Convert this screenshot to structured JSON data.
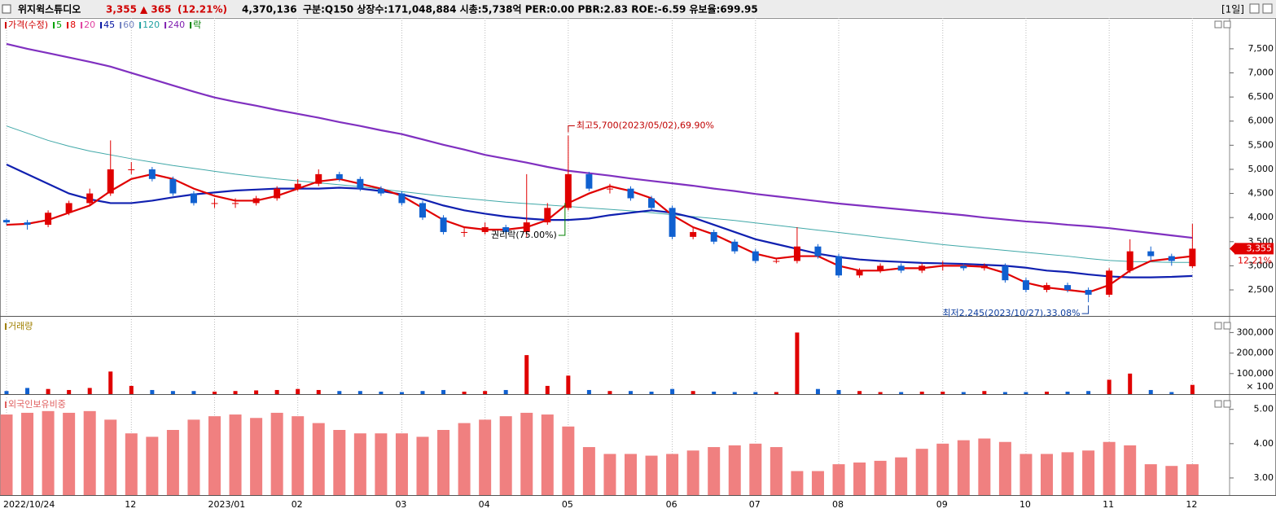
{
  "header": {
    "name": "위지윅스튜디오",
    "price": "3,355",
    "change": "▲ 365",
    "change_pct": "(12.21%)",
    "volume": "4,370,136",
    "info": "구분:Q150 상장수:171,048,884 시총:5,738억 PER:0.00 PBR:2.83 ROE:-6.59 유보율:699.95",
    "period": "[1일]"
  },
  "chart_data": [
    {
      "type": "candlestick",
      "up_color": "#e00000",
      "down_color": "#1060d0",
      "legend": [
        {
          "name": "가격(수정)",
          "color": "#d00000"
        },
        {
          "name": "5",
          "color": "#00a000"
        },
        {
          "name": "8",
          "color": "#e00000"
        },
        {
          "name": "20",
          "color": "#e040a0"
        },
        {
          "name": "45",
          "color": "#0010a0"
        },
        {
          "name": "60",
          "color": "#7080c0"
        },
        {
          "name": "120",
          "color": "#20a0a0"
        },
        {
          "name": "240",
          "color": "#8020b0"
        },
        {
          "name": "락",
          "color": "#008000"
        }
      ],
      "categories": [
        "2022/10/24",
        null,
        null,
        null,
        null,
        null,
        "12",
        null,
        null,
        null,
        "2023/01",
        null,
        null,
        null,
        "02",
        null,
        null,
        null,
        null,
        "03",
        null,
        null,
        null,
        "04",
        null,
        null,
        null,
        "05",
        null,
        null,
        null,
        null,
        "06",
        null,
        null,
        null,
        "07",
        null,
        null,
        null,
        "08",
        null,
        null,
        null,
        null,
        "09",
        null,
        null,
        null,
        "10",
        null,
        null,
        null,
        "11",
        null,
        null,
        null,
        "12"
      ],
      "open": [
        3950,
        3900,
        3850,
        4100,
        4300,
        4500,
        5000,
        5000,
        4800,
        4500,
        4300,
        4300,
        4300,
        4400,
        4600,
        4700,
        4900,
        4800,
        4600,
        4500,
        4300,
        4000,
        3700,
        3700,
        3800,
        3700,
        3900,
        4200,
        4900,
        4600,
        4600,
        4400,
        4200,
        3600,
        3700,
        3500,
        3300,
        3100,
        3100,
        3400,
        3200,
        2800,
        2900,
        3000,
        2900,
        3000,
        3000,
        2950,
        3000,
        2700,
        2500,
        2600,
        2500,
        2400,
        2900,
        3300,
        3200,
        2990
      ],
      "high": [
        3980,
        3950,
        4150,
        4350,
        4600,
        5600,
        5150,
        5050,
        4850,
        4550,
        4400,
        4400,
        4450,
        4650,
        4800,
        5000,
        4950,
        4850,
        4650,
        4550,
        4350,
        4050,
        3800,
        3900,
        3850,
        4900,
        4300,
        5700,
        4950,
        4700,
        4650,
        4450,
        4250,
        3800,
        3750,
        3550,
        3350,
        3150,
        3800,
        3450,
        3250,
        2950,
        3050,
        3050,
        3050,
        3100,
        3050,
        3050,
        3050,
        2750,
        2650,
        2650,
        2550,
        2950,
        3550,
        3400,
        3250,
        3870
      ],
      "low": [
        3850,
        3750,
        3800,
        4050,
        4250,
        4450,
        4900,
        4750,
        4450,
        4250,
        4200,
        4200,
        4250,
        4350,
        4550,
        4650,
        4750,
        4550,
        4450,
        4250,
        3950,
        3650,
        3600,
        3650,
        3650,
        3600,
        3850,
        4150,
        4550,
        4500,
        4350,
        4150,
        3550,
        3550,
        3450,
        3250,
        3050,
        3050,
        3050,
        3150,
        2750,
        2750,
        2850,
        2850,
        2850,
        2900,
        2900,
        2900,
        2650,
        2450,
        2450,
        2450,
        2245,
        2350,
        2850,
        3100,
        3000,
        2950
      ],
      "close": [
        3900,
        3850,
        4100,
        4300,
        4500,
        5000,
        5000,
        4800,
        4500,
        4300,
        4300,
        4300,
        4400,
        4600,
        4700,
        4900,
        4800,
        4600,
        4500,
        4300,
        4000,
        3700,
        3700,
        3800,
        3700,
        3900,
        4200,
        4900,
        4600,
        4600,
        4400,
        4200,
        3600,
        3700,
        3500,
        3300,
        3100,
        3100,
        3400,
        3200,
        2800,
        2900,
        3000,
        2900,
        3000,
        3000,
        2950,
        3000,
        2700,
        2500,
        2600,
        2500,
        2400,
        2900,
        3300,
        3200,
        3100,
        3355
      ],
      "ma_lines": [
        {
          "color": "#40a8a8",
          "values": [
            5900,
            5750,
            5600,
            5480,
            5380,
            5300,
            5220,
            5150,
            5080,
            5020,
            4960,
            4900,
            4850,
            4800,
            4760,
            4720,
            4680,
            4640,
            4590,
            4540,
            4490,
            4440,
            4400,
            4360,
            4320,
            4290,
            4260,
            4230,
            4200,
            4170,
            4140,
            4100,
            4060,
            4020,
            3980,
            3940,
            3890,
            3840,
            3790,
            3740,
            3690,
            3640,
            3590,
            3540,
            3490,
            3440,
            3400,
            3360,
            3320,
            3280,
            3240,
            3200,
            3150,
            3110,
            3090,
            3080,
            3070,
            3070
          ]
        },
        {
          "color": "#8030c0",
          "values": [
            7600,
            7500,
            7410,
            7320,
            7230,
            7130,
            7000,
            6870,
            6740,
            6610,
            6490,
            6400,
            6320,
            6230,
            6150,
            6070,
            5980,
            5900,
            5810,
            5730,
            5620,
            5510,
            5410,
            5300,
            5220,
            5140,
            5050,
            4970,
            4920,
            4870,
            4810,
            4760,
            4710,
            4660,
            4600,
            4550,
            4490,
            4440,
            4390,
            4340,
            4290,
            4250,
            4210,
            4170,
            4130,
            4090,
            4050,
            4000,
            3960,
            3920,
            3890,
            3850,
            3820,
            3780,
            3730,
            3680,
            3630,
            3580
          ]
        },
        {
          "color": "#1020b0",
          "values": [
            5100,
            4900,
            4700,
            4500,
            4380,
            4300,
            4300,
            4350,
            4420,
            4480,
            4520,
            4560,
            4580,
            4600,
            4600,
            4600,
            4620,
            4600,
            4550,
            4480,
            4380,
            4250,
            4150,
            4080,
            4020,
            3980,
            3950,
            3950,
            3980,
            4050,
            4100,
            4150,
            4100,
            4000,
            3850,
            3700,
            3550,
            3450,
            3350,
            3250,
            3180,
            3130,
            3100,
            3080,
            3060,
            3050,
            3040,
            3020,
            3000,
            2960,
            2900,
            2870,
            2820,
            2780,
            2760,
            2760,
            2770,
            2790
          ]
        },
        {
          "color": "#e00000",
          "values": [
            3850,
            3870,
            3950,
            4100,
            4250,
            4550,
            4800,
            4900,
            4800,
            4600,
            4450,
            4350,
            4350,
            4450,
            4600,
            4750,
            4800,
            4700,
            4600,
            4450,
            4200,
            3950,
            3800,
            3750,
            3750,
            3800,
            3950,
            4300,
            4500,
            4650,
            4550,
            4400,
            4050,
            3800,
            3650,
            3450,
            3250,
            3150,
            3200,
            3200,
            3000,
            2900,
            2900,
            2950,
            2950,
            3000,
            3000,
            2980,
            2850,
            2650,
            2550,
            2500,
            2450,
            2600,
            2900,
            3100,
            3150,
            3200
          ]
        }
      ],
      "annotations": {
        "high": "최고5,700(2023/05/02),69.90%",
        "low": "최저2,245(2023/10/27),33.08%",
        "rights": "권리락(75.00%)"
      },
      "price_tag": {
        "price": "3,355",
        "change": "12.21%"
      },
      "ylim": [
        1960,
        8140
      ],
      "yticks": [
        {
          "value": 2500,
          "label": "2,500"
        },
        {
          "value": 3000,
          "label": "3,000"
        },
        {
          "value": 3500,
          "label": "3,500"
        },
        {
          "value": 4000,
          "label": "4,000"
        },
        {
          "value": 4500,
          "label": "4,500"
        },
        {
          "value": 5000,
          "label": "5,000"
        },
        {
          "value": 5500,
          "label": "5,500"
        },
        {
          "value": 6000,
          "label": "6,000"
        },
        {
          "value": 6500,
          "label": "6,500"
        },
        {
          "value": 7000,
          "label": "7,000"
        },
        {
          "value": 7500,
          "label": "7,500"
        }
      ]
    },
    {
      "type": "bar",
      "title": "거래량",
      "title_color": "#a08000",
      "up_color": "#e00000",
      "down_color": "#1060d0",
      "unit_label": "× 100",
      "values": [
        15000,
        30000,
        25000,
        20000,
        30000,
        110000,
        40000,
        20000,
        15000,
        15000,
        12000,
        15000,
        18000,
        20000,
        25000,
        20000,
        15000,
        15000,
        12000,
        10000,
        15000,
        20000,
        12000,
        15000,
        20000,
        190000,
        40000,
        90000,
        20000,
        15000,
        15000,
        12000,
        25000,
        15000,
        12000,
        10000,
        10000,
        10000,
        300000,
        25000,
        20000,
        15000,
        10000,
        10000,
        12000,
        12000,
        10000,
        15000,
        10000,
        10000,
        12000,
        12000,
        15000,
        70000,
        100000,
        20000,
        10000,
        45000
      ],
      "ylim": [
        0,
        365000
      ],
      "yticks": [
        {
          "value": 100000,
          "label": "100,000"
        },
        {
          "value": 200000,
          "label": "200,000"
        },
        {
          "value": 300000,
          "label": "300,000"
        }
      ]
    },
    {
      "type": "bar",
      "title": "외국인보유비중",
      "title_color": "#e06060",
      "color": "#f08080",
      "values": [
        4.85,
        4.9,
        4.95,
        4.9,
        4.95,
        4.7,
        4.3,
        4.2,
        4.4,
        4.7,
        4.8,
        4.85,
        4.75,
        4.9,
        4.8,
        4.6,
        4.4,
        4.3,
        4.3,
        4.3,
        4.2,
        4.4,
        4.6,
        4.7,
        4.8,
        4.9,
        4.85,
        4.5,
        3.9,
        3.7,
        3.7,
        3.65,
        3.7,
        3.8,
        3.9,
        3.95,
        4.0,
        3.9,
        3.2,
        3.2,
        3.4,
        3.45,
        3.5,
        3.6,
        3.85,
        4.0,
        4.1,
        4.15,
        4.05,
        3.7,
        3.7,
        3.75,
        3.8,
        4.05,
        3.95,
        3.4,
        3.35,
        3.4
      ],
      "ylim": [
        2.5,
        5.35
      ],
      "yticks": [
        {
          "value": 3,
          "label": "3.00"
        },
        {
          "value": 4,
          "label": "4.00"
        },
        {
          "value": 5,
          "label": "5.00"
        }
      ]
    }
  ]
}
